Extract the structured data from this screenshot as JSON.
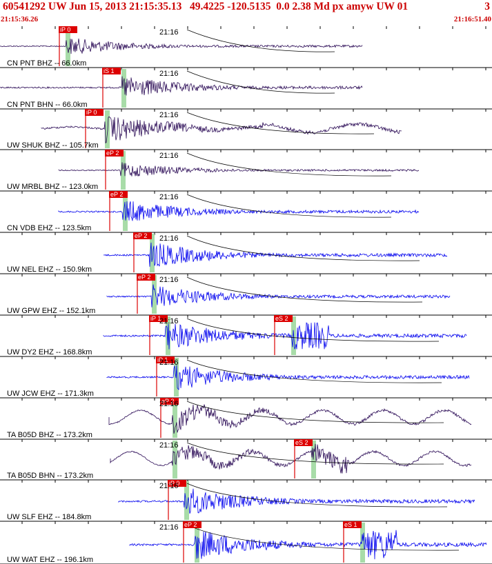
{
  "header": {
    "event_line": "60541292 UW Jun 15, 2013 21:15:35.13   49.4225 -120.5135  0.0 2.38 Md px amyw UW 01",
    "count": "3",
    "start_time": "21:15:36.26",
    "end_time": "21:16:51.40"
  },
  "minute_label": "21:16",
  "colors": {
    "header": "#cc0000",
    "broadband_trace": "#2a0a55",
    "short_period_trace": "#0000ee",
    "pick": "#dd0000",
    "window": "#a8dca8",
    "grid": "#000000"
  },
  "traces": [
    {
      "label": "CN PNT BHZ -- 66.0km",
      "color": "broadband_trace",
      "pick1": "iP 0",
      "pick2": ""
    },
    {
      "label": "CN PNT BHN -- 66.0km",
      "color": "broadband_trace",
      "pick1": "iS 1",
      "pick2": ""
    },
    {
      "label": "UW SHUK BHZ -- 105.7km",
      "color": "broadband_trace",
      "pick1": "iP 0",
      "pick2": ""
    },
    {
      "label": "UW MRBL BHZ -- 123.0km",
      "color": "broadband_trace",
      "pick1": "eP 2",
      "pick2": ""
    },
    {
      "label": "CN VDB EHZ -- 123.5km",
      "color": "short_period_trace",
      "pick1": "eP 2",
      "pick2": ""
    },
    {
      "label": "UW NEL EHZ -- 150.9km",
      "color": "short_period_trace",
      "pick1": "eP 2",
      "pick2": ""
    },
    {
      "label": "UW GPW EHZ -- 152.1km",
      "color": "short_period_trace",
      "pick1": "eP 2",
      "pick2": ""
    },
    {
      "label": "UW DY2 EHZ -- 168.8km",
      "color": "short_period_trace",
      "pick1": "iP 1",
      "pick2": "eS 2"
    },
    {
      "label": "UW JCW EHZ -- 171.3km",
      "color": "short_period_trace",
      "pick1": "iP 1",
      "pick2": ""
    },
    {
      "label": "TA B05D BHZ -- 173.2km",
      "color": "broadband_trace",
      "pick1": "eP 2",
      "pick2": ""
    },
    {
      "label": "TA B05D BHN -- 173.2km",
      "color": "broadband_trace",
      "pick1": "",
      "pick2": "eS 2"
    },
    {
      "label": "UW SLF EHZ -- 184.8km",
      "color": "short_period_trace",
      "pick1": "iP 0",
      "pick2": ""
    },
    {
      "label": "UW WAT EHZ -- 196.1km",
      "color": "short_period_trace",
      "pick1": "eP 2",
      "pick2": "eS 1"
    }
  ]
}
